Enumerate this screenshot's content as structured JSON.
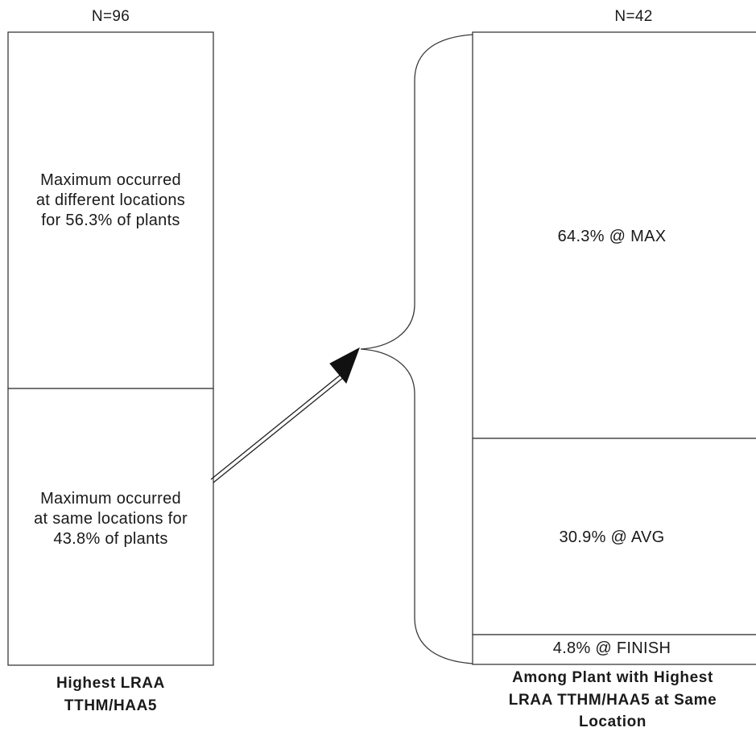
{
  "left_bar": {
    "n_label": "N=96",
    "segments": [
      {
        "label": "Maximum occurred\nat different locations\nfor 56.3% of plants",
        "value": 56.3
      },
      {
        "label": "Maximum occurred\nat same locations for\n43.8% of plants",
        "value": 43.8
      }
    ],
    "caption": "Highest LRAA\nTTHM/HAA5"
  },
  "right_bar": {
    "n_label": "N=42",
    "segments": [
      {
        "label": "64.3% @ MAX",
        "value": 64.3
      },
      {
        "label": "30.9% @ AVG",
        "value": 30.9
      },
      {
        "label": "4.8% @ FINISH",
        "value": 4.8
      }
    ],
    "caption": "Among Plant with Highest\nLRAA TTHM/HAA5 at Same\nLocation"
  }
}
